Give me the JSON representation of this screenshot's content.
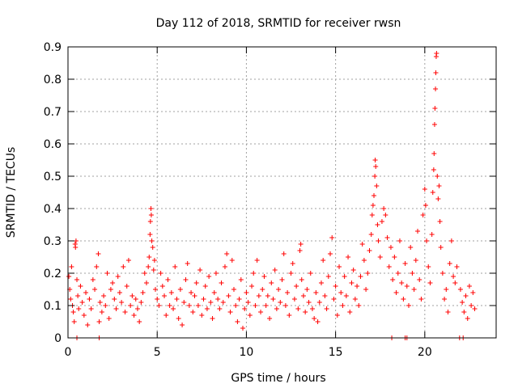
{
  "chart_data": {
    "type": "scatter",
    "title": "Day 112 of 2018, SRMTID for receiver rwsn",
    "xlabel": "GPS time / hours",
    "ylabel": "SRMTID / TECUs",
    "xlim": [
      0,
      24
    ],
    "ylim": [
      0,
      0.9
    ],
    "xticks": [
      0,
      5,
      10,
      15,
      20
    ],
    "xtick_labels": [
      "0",
      "5",
      "10",
      "15",
      "20"
    ],
    "yticks": [
      0,
      0.1,
      0.2,
      0.3,
      0.4,
      0.5,
      0.6,
      0.7,
      0.8,
      0.9
    ],
    "ytick_labels": [
      "0",
      "0.1",
      "0.2",
      "0.3",
      "0.4",
      "0.5",
      "0.6",
      "0.7",
      "0.8",
      "0.9"
    ],
    "grid": true,
    "marker": "+",
    "color": "#ff0000",
    "series": [
      {
        "name": "SRMTID",
        "points": [
          [
            0.05,
            0.19
          ],
          [
            0.1,
            0.15
          ],
          [
            0.15,
            0.12
          ],
          [
            0.2,
            0.22
          ],
          [
            0.25,
            0.1
          ],
          [
            0.3,
            0.08
          ],
          [
            0.35,
            0.05
          ],
          [
            0.4,
            0.29
          ],
          [
            0.42,
            0.28
          ],
          [
            0.45,
            0.3
          ],
          [
            0.5,
            0.18
          ],
          [
            0.55,
            0.13
          ],
          [
            0.6,
            0.09
          ],
          [
            0.7,
            0.16
          ],
          [
            0.8,
            0.11
          ],
          [
            0.9,
            0.07
          ],
          [
            1.0,
            0.14
          ],
          [
            1.1,
            0.04
          ],
          [
            1.2,
            0.12
          ],
          [
            1.3,
            0.09
          ],
          [
            1.4,
            0.18
          ],
          [
            1.5,
            0.15
          ],
          [
            1.6,
            0.22
          ],
          [
            1.7,
            0.26
          ],
          [
            1.75,
            0.05
          ],
          [
            1.8,
            0.11
          ],
          [
            1.9,
            0.08
          ],
          [
            2.0,
            0.13
          ],
          [
            2.1,
            0.1
          ],
          [
            2.2,
            0.2
          ],
          [
            2.3,
            0.06
          ],
          [
            2.4,
            0.15
          ],
          [
            2.5,
            0.17
          ],
          [
            2.6,
            0.12
          ],
          [
            2.7,
            0.09
          ],
          [
            2.8,
            0.19
          ],
          [
            2.9,
            0.14
          ],
          [
            3.0,
            0.11
          ],
          [
            3.1,
            0.22
          ],
          [
            3.2,
            0.08
          ],
          [
            3.3,
            0.16
          ],
          [
            3.4,
            0.24
          ],
          [
            3.5,
            0.1
          ],
          [
            3.6,
            0.13
          ],
          [
            3.7,
            0.07
          ],
          [
            3.8,
            0.12
          ],
          [
            3.9,
            0.09
          ],
          [
            4.0,
            0.05
          ],
          [
            4.1,
            0.11
          ],
          [
            4.2,
            0.14
          ],
          [
            4.3,
            0.2
          ],
          [
            4.4,
            0.17
          ],
          [
            4.5,
            0.22
          ],
          [
            4.55,
            0.25
          ],
          [
            4.6,
            0.32
          ],
          [
            4.62,
            0.36
          ],
          [
            4.65,
            0.4
          ],
          [
            4.67,
            0.38
          ],
          [
            4.7,
            0.3
          ],
          [
            4.75,
            0.28
          ],
          [
            4.8,
            0.21
          ],
          [
            4.85,
            0.24
          ],
          [
            4.9,
            0.15
          ],
          [
            5.0,
            0.12
          ],
          [
            5.1,
            0.1
          ],
          [
            5.2,
            0.2
          ],
          [
            5.3,
            0.16
          ],
          [
            5.4,
            0.13
          ],
          [
            5.5,
            0.07
          ],
          [
            5.6,
            0.18
          ],
          [
            5.7,
            0.1
          ],
          [
            5.8,
            0.14
          ],
          [
            5.9,
            0.09
          ],
          [
            6.0,
            0.22
          ],
          [
            6.1,
            0.12
          ],
          [
            6.2,
            0.06
          ],
          [
            6.3,
            0.15
          ],
          [
            6.4,
            0.04
          ],
          [
            6.5,
            0.11
          ],
          [
            6.6,
            0.18
          ],
          [
            6.7,
            0.23
          ],
          [
            6.8,
            0.1
          ],
          [
            6.9,
            0.14
          ],
          [
            7.0,
            0.08
          ],
          [
            7.1,
            0.13
          ],
          [
            7.2,
            0.17
          ],
          [
            7.3,
            0.1
          ],
          [
            7.4,
            0.21
          ],
          [
            7.5,
            0.07
          ],
          [
            7.6,
            0.12
          ],
          [
            7.7,
            0.16
          ],
          [
            7.8,
            0.09
          ],
          [
            7.9,
            0.19
          ],
          [
            8.0,
            0.11
          ],
          [
            8.1,
            0.06
          ],
          [
            8.2,
            0.14
          ],
          [
            8.3,
            0.2
          ],
          [
            8.4,
            0.12
          ],
          [
            8.5,
            0.09
          ],
          [
            8.6,
            0.17
          ],
          [
            8.7,
            0.11
          ],
          [
            8.8,
            0.22
          ],
          [
            8.9,
            0.26
          ],
          [
            9.0,
            0.13
          ],
          [
            9.1,
            0.08
          ],
          [
            9.2,
            0.24
          ],
          [
            9.3,
            0.15
          ],
          [
            9.4,
            0.1
          ],
          [
            9.5,
            0.05
          ],
          [
            9.6,
            0.12
          ],
          [
            9.7,
            0.18
          ],
          [
            9.8,
            0.03
          ],
          [
            9.9,
            0.09
          ],
          [
            10.0,
            0.14
          ],
          [
            10.1,
            0.11
          ],
          [
            10.2,
            0.07
          ],
          [
            10.3,
            0.16
          ],
          [
            10.4,
            0.2
          ],
          [
            10.5,
            0.1
          ],
          [
            10.6,
            0.24
          ],
          [
            10.7,
            0.13
          ],
          [
            10.8,
            0.08
          ],
          [
            10.9,
            0.15
          ],
          [
            11.0,
            0.19
          ],
          [
            11.1,
            0.1
          ],
          [
            11.2,
            0.13
          ],
          [
            11.3,
            0.06
          ],
          [
            11.4,
            0.17
          ],
          [
            11.5,
            0.12
          ],
          [
            11.6,
            0.21
          ],
          [
            11.7,
            0.09
          ],
          [
            11.8,
            0.15
          ],
          [
            11.9,
            0.11
          ],
          [
            12.0,
            0.18
          ],
          [
            12.1,
            0.26
          ],
          [
            12.2,
            0.1
          ],
          [
            12.3,
            0.14
          ],
          [
            12.4,
            0.07
          ],
          [
            12.5,
            0.2
          ],
          [
            12.6,
            0.23
          ],
          [
            12.7,
            0.12
          ],
          [
            12.8,
            0.16
          ],
          [
            12.9,
            0.09
          ],
          [
            13.0,
            0.27
          ],
          [
            13.05,
            0.29
          ],
          [
            13.1,
            0.18
          ],
          [
            13.2,
            0.13
          ],
          [
            13.3,
            0.08
          ],
          [
            13.4,
            0.15
          ],
          [
            13.5,
            0.11
          ],
          [
            13.6,
            0.2
          ],
          [
            13.7,
            0.09
          ],
          [
            13.8,
            0.06
          ],
          [
            13.9,
            0.14
          ],
          [
            14.0,
            0.05
          ],
          [
            14.1,
            0.11
          ],
          [
            14.2,
            0.17
          ],
          [
            14.3,
            0.24
          ],
          [
            14.4,
            0.13
          ],
          [
            14.5,
            0.09
          ],
          [
            14.6,
            0.19
          ],
          [
            14.7,
            0.26
          ],
          [
            14.8,
            0.31
          ],
          [
            14.9,
            0.12
          ],
          [
            15.0,
            0.16
          ],
          [
            15.1,
            0.07
          ],
          [
            15.2,
            0.22
          ],
          [
            15.3,
            0.14
          ],
          [
            15.4,
            0.1
          ],
          [
            15.5,
            0.19
          ],
          [
            15.6,
            0.13
          ],
          [
            15.7,
            0.25
          ],
          [
            15.8,
            0.08
          ],
          [
            15.9,
            0.17
          ],
          [
            16.0,
            0.21
          ],
          [
            16.1,
            0.12
          ],
          [
            16.2,
            0.16
          ],
          [
            16.3,
            0.1
          ],
          [
            16.4,
            0.19
          ],
          [
            16.5,
            0.29
          ],
          [
            16.6,
            0.24
          ],
          [
            16.7,
            0.15
          ],
          [
            16.8,
            0.2
          ],
          [
            16.9,
            0.27
          ],
          [
            17.0,
            0.32
          ],
          [
            17.05,
            0.38
          ],
          [
            17.1,
            0.41
          ],
          [
            17.15,
            0.44
          ],
          [
            17.2,
            0.5
          ],
          [
            17.22,
            0.55
          ],
          [
            17.25,
            0.53
          ],
          [
            17.3,
            0.47
          ],
          [
            17.35,
            0.35
          ],
          [
            17.4,
            0.3
          ],
          [
            17.5,
            0.25
          ],
          [
            17.6,
            0.36
          ],
          [
            17.7,
            0.4
          ],
          [
            17.8,
            0.38
          ],
          [
            17.9,
            0.31
          ],
          [
            18.0,
            0.22
          ],
          [
            18.1,
            0.28
          ],
          [
            18.2,
            0.18
          ],
          [
            18.3,
            0.25
          ],
          [
            18.4,
            0.14
          ],
          [
            18.5,
            0.2
          ],
          [
            18.6,
            0.3
          ],
          [
            18.7,
            0.17
          ],
          [
            18.8,
            0.12
          ],
          [
            18.9,
            0.23
          ],
          [
            19.0,
            0.16
          ],
          [
            19.1,
            0.1
          ],
          [
            19.2,
            0.28
          ],
          [
            19.3,
            0.2
          ],
          [
            19.4,
            0.15
          ],
          [
            19.5,
            0.24
          ],
          [
            19.6,
            0.33
          ],
          [
            19.7,
            0.18
          ],
          [
            19.8,
            0.12
          ],
          [
            19.9,
            0.38
          ],
          [
            20.0,
            0.46
          ],
          [
            20.05,
            0.41
          ],
          [
            20.1,
            0.3
          ],
          [
            20.2,
            0.22
          ],
          [
            20.3,
            0.17
          ],
          [
            20.4,
            0.32
          ],
          [
            20.45,
            0.45
          ],
          [
            20.5,
            0.52
          ],
          [
            20.52,
            0.57
          ],
          [
            20.55,
            0.66
          ],
          [
            20.57,
            0.71
          ],
          [
            20.6,
            0.77
          ],
          [
            20.62,
            0.82
          ],
          [
            20.64,
            0.87
          ],
          [
            20.66,
            0.88
          ],
          [
            20.7,
            0.5
          ],
          [
            20.75,
            0.43
          ],
          [
            20.8,
            0.47
          ],
          [
            20.85,
            0.36
          ],
          [
            20.9,
            0.28
          ],
          [
            21.0,
            0.2
          ],
          [
            21.1,
            0.12
          ],
          [
            21.2,
            0.15
          ],
          [
            21.3,
            0.08
          ],
          [
            21.4,
            0.23
          ],
          [
            21.5,
            0.3
          ],
          [
            21.6,
            0.19
          ],
          [
            21.7,
            0.17
          ],
          [
            21.8,
            0.22
          ],
          [
            22.0,
            0.15
          ],
          [
            22.1,
            0.11
          ],
          [
            22.2,
            0.08
          ],
          [
            22.3,
            0.13
          ],
          [
            22.4,
            0.06
          ],
          [
            22.5,
            0.16
          ],
          [
            22.6,
            0.1
          ],
          [
            22.7,
            0.14
          ],
          [
            22.8,
            0.09
          ]
        ]
      }
    ],
    "zero_points": [
      0.5,
      1.75,
      18.15,
      18.9,
      19.0,
      21.95,
      22.15
    ]
  }
}
